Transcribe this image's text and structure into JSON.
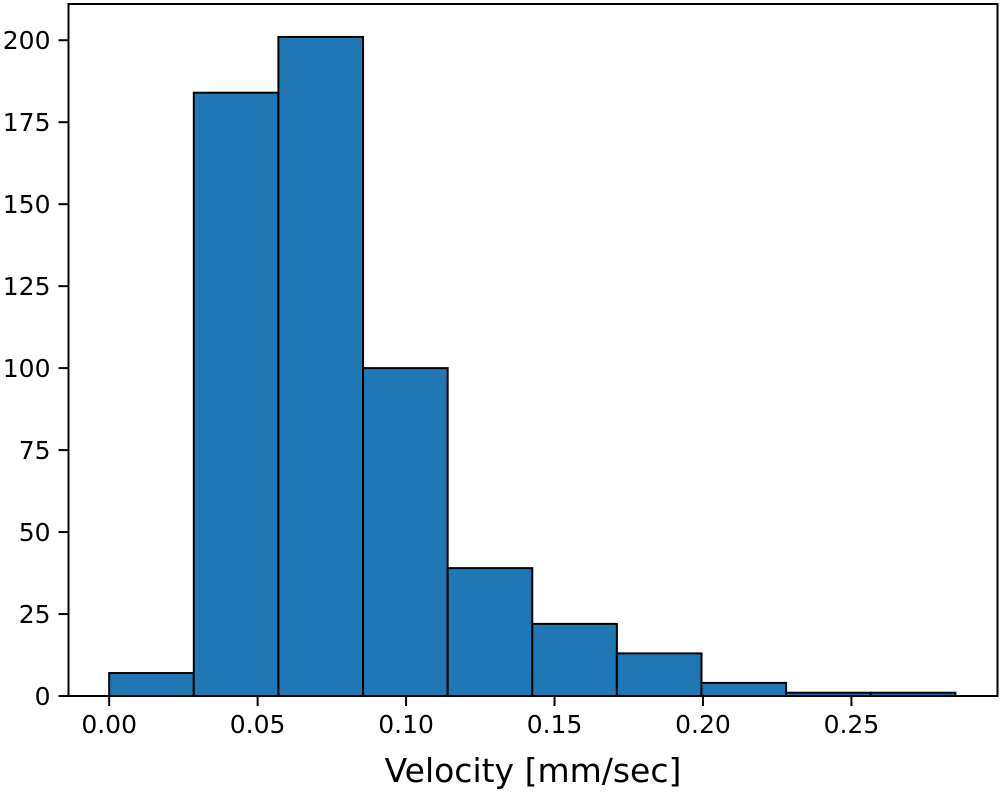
{
  "chart_data": {
    "type": "bar",
    "subtype": "histogram",
    "title": "",
    "xlabel": "Velocity [mm/sec]",
    "ylabel": "",
    "bin_start": 0.0,
    "bin_width": 0.0285,
    "bin_edges": [
      0.0,
      0.0285,
      0.057,
      0.0855,
      0.114,
      0.1425,
      0.171,
      0.1995,
      0.228,
      0.2565,
      0.285
    ],
    "counts": [
      7,
      184,
      201,
      100,
      39,
      22,
      13,
      4,
      1,
      1
    ],
    "x_ticks": [
      0.0,
      0.05,
      0.1,
      0.15,
      0.2,
      0.25
    ],
    "x_tick_labels": [
      "0.00",
      "0.05",
      "0.10",
      "0.15",
      "0.20",
      "0.25"
    ],
    "y_ticks": [
      0,
      25,
      50,
      75,
      100,
      125,
      150,
      175,
      200
    ],
    "y_tick_labels": [
      "0",
      "25",
      "50",
      "75",
      "100",
      "125",
      "150",
      "175",
      "200"
    ],
    "xlim": [
      -0.0137,
      0.2992
    ],
    "ylim": [
      0,
      211.05
    ],
    "bar_color": "#1f77b4",
    "edge_color": "#000000",
    "axis_color": "#000000",
    "background_color": "#ffffff",
    "grid": false,
    "legend": null
  }
}
